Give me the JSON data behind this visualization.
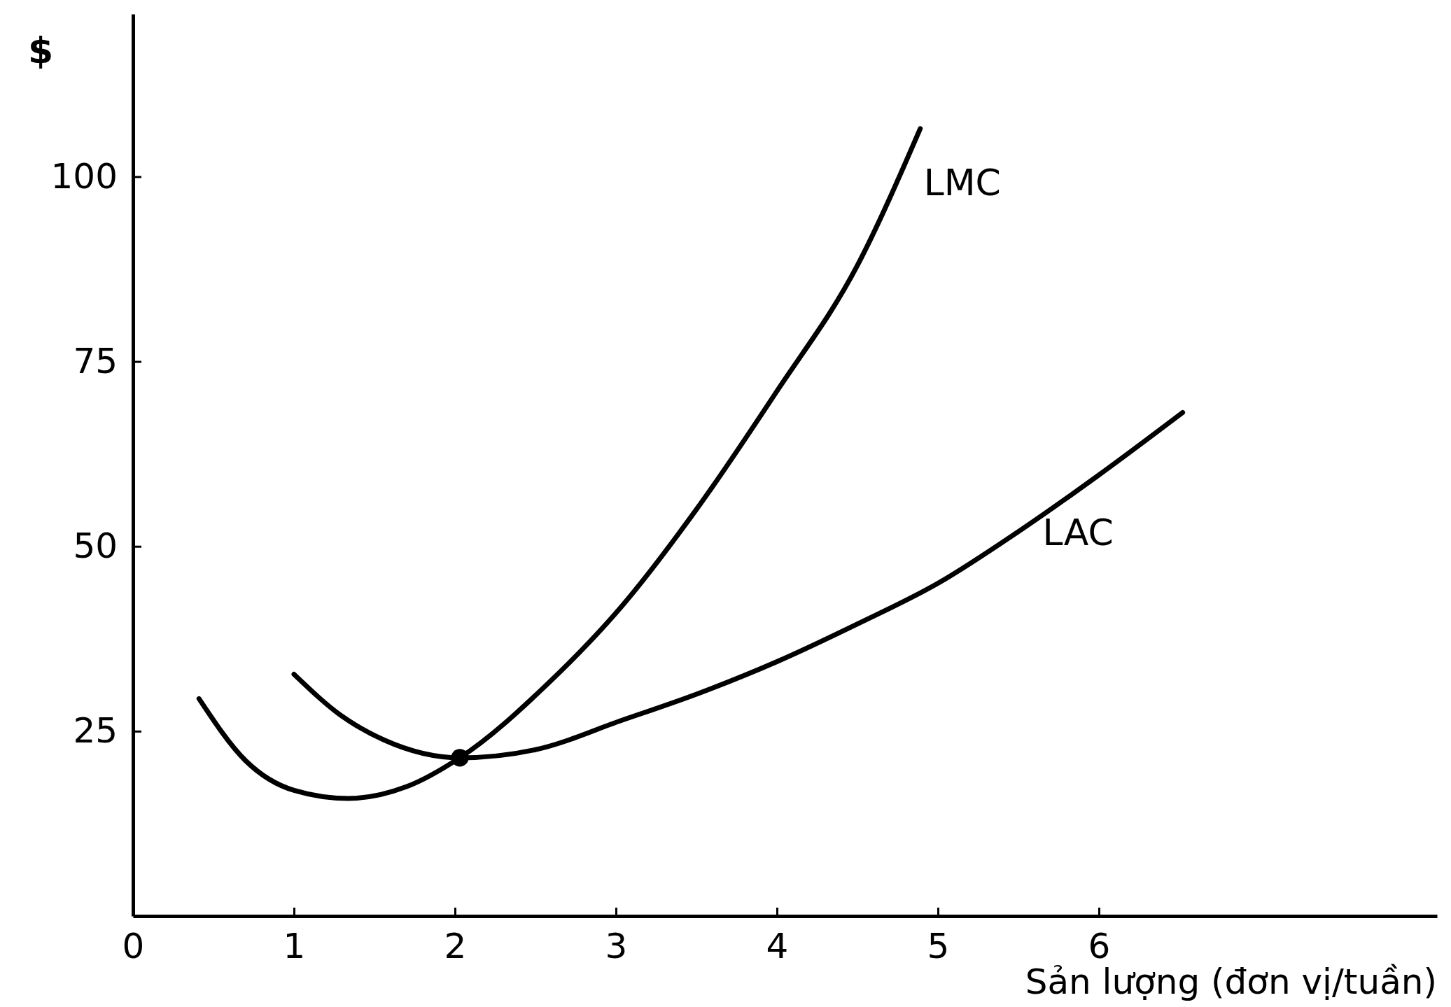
{
  "chart_data": {
    "type": "line",
    "ylabel": "$",
    "xlabel": "Sản lượng (đơn vị/tuần)",
    "xlim": [
      0,
      8.1
    ],
    "ylim": [
      0,
      122
    ],
    "xticks": [
      0,
      1,
      2,
      3,
      4,
      5,
      6
    ],
    "yticks": [
      25,
      50,
      75,
      100
    ],
    "grid": false,
    "marker": "none",
    "line_style": "solid",
    "series": [
      {
        "name": "LMC",
        "color": "#000000",
        "x": [
          0.41,
          0.7,
          1.0,
          1.34,
          1.7,
          2.03,
          2.59,
          3.04,
          3.5,
          4.0,
          4.5,
          4.89
        ],
        "values": [
          29.4,
          21,
          17,
          15.9,
          17.5,
          21.4,
          31.7,
          42,
          55,
          71,
          88,
          106.5
        ]
      },
      {
        "name": "LAC",
        "color": "#000000",
        "x": [
          1.0,
          1.3,
          1.56,
          2.03,
          2.5,
          3.04,
          3.5,
          4.0,
          4.5,
          5.0,
          5.5,
          5.99,
          6.52
        ],
        "values": [
          32.7,
          27,
          23.8,
          21.4,
          22.5,
          26.5,
          30,
          34.4,
          39.5,
          45,
          52,
          59.5,
          68.1
        ]
      },
      {
        "type": "scatter",
        "color": "#000000",
        "marker": "circle",
        "x": [
          2.03
        ],
        "values": [
          21.4
        ]
      }
    ]
  }
}
